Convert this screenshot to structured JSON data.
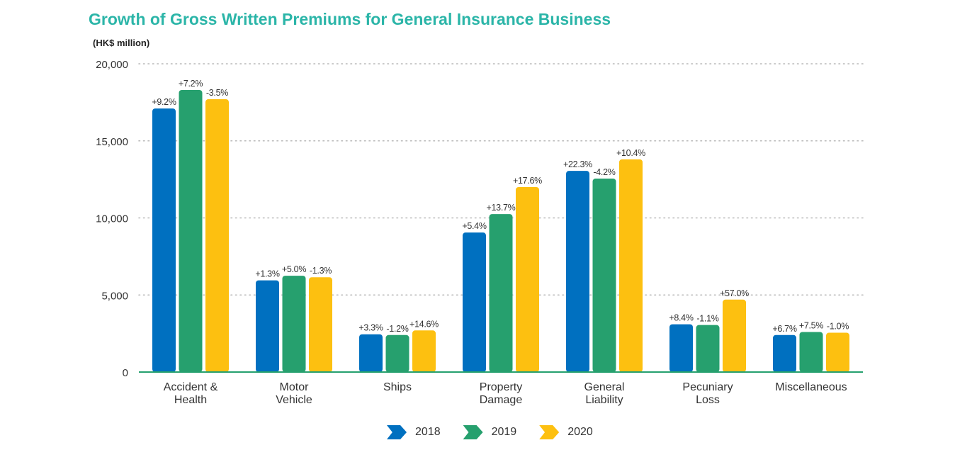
{
  "chart_data": {
    "type": "bar",
    "title": "Growth of Gross Written Premiums for General Insurance Business",
    "unit_label": "(HK$ million)",
    "categories": [
      [
        "Accident &",
        "Health"
      ],
      [
        "Motor",
        "Vehicle"
      ],
      [
        "Ships"
      ],
      [
        "Property",
        "Damage"
      ],
      [
        "General",
        "Liability"
      ],
      [
        "Pecuniary",
        "Loss"
      ],
      [
        "Miscellaneous"
      ]
    ],
    "ylim": [
      0,
      20000
    ],
    "yticks": [
      {
        "value": 0,
        "label": "0"
      },
      {
        "value": 5000,
        "label": "5,000"
      },
      {
        "value": 10000,
        "label": "10,000"
      },
      {
        "value": 15000,
        "label": "15,000"
      },
      {
        "value": 20000,
        "label": "20,000"
      }
    ],
    "grid": true,
    "legend_position": "bottom-center",
    "series": [
      {
        "name": "2018",
        "color": "#0070c0",
        "values": [
          17100,
          5950,
          2450,
          9050,
          13050,
          3100,
          2400
        ],
        "labels": [
          "+9.2%",
          "+1.3%",
          "+3.3%",
          "+5.4%",
          "+22.3%",
          "+8.4%",
          "+6.7%"
        ]
      },
      {
        "name": "2019",
        "color": "#26a06e",
        "values": [
          18300,
          6250,
          2400,
          10250,
          12550,
          3050,
          2600
        ],
        "labels": [
          "+7.2%",
          "+5.0%",
          "-1.2%",
          "+13.7%",
          "-4.2%",
          "-1.1%",
          "+7.5%"
        ]
      },
      {
        "name": "2020",
        "color": "#fdc010",
        "values": [
          17700,
          6150,
          2700,
          12000,
          13800,
          4700,
          2550
        ],
        "labels": [
          "-3.5%",
          "-1.3%",
          "+14.6%",
          "+17.6%",
          "+10.4%",
          "+57.0%",
          "-1.0%"
        ]
      }
    ],
    "colors": {
      "title": "#2bb5a8",
      "axis": "#26a06e",
      "grid": "#b8b8b8",
      "text": "#333333"
    }
  }
}
